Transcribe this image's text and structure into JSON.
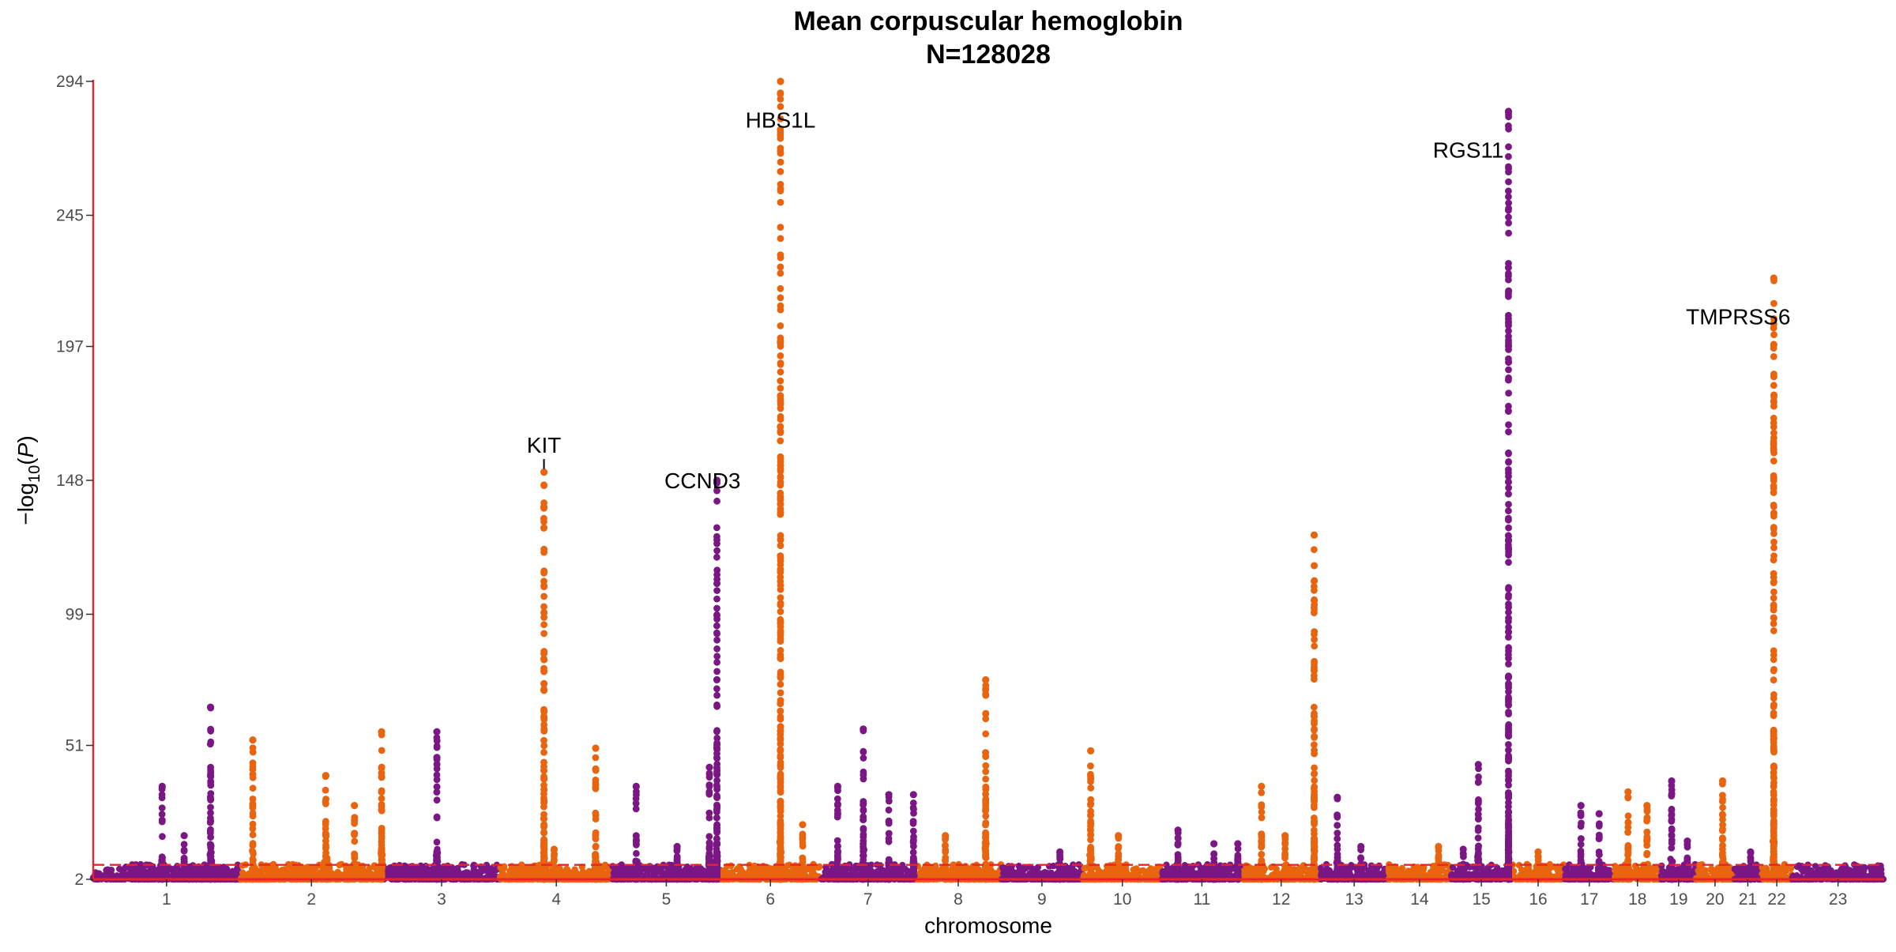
{
  "chart_data": {
    "type": "scatter",
    "subtype": "manhattan",
    "title": "Mean corpuscular hemoglobin",
    "subtitle": "N=128028",
    "xlabel": "chromosome",
    "ylabel": "-log10(P)",
    "ylim": [
      2,
      294
    ],
    "yticks": [
      2,
      51,
      99,
      148,
      197,
      245,
      294
    ],
    "significance_line": 7.3,
    "grid": false,
    "colors": {
      "odd": "#7B1685",
      "even": "#E8640E",
      "threshold": "#E8242A",
      "axis": "#E8242A"
    },
    "chromosomes": [
      {
        "label": "1",
        "start": 0,
        "end": 248
      },
      {
        "label": "2",
        "start": 248,
        "end": 490
      },
      {
        "label": "3",
        "start": 490,
        "end": 688
      },
      {
        "label": "4",
        "start": 688,
        "end": 878
      },
      {
        "label": "5",
        "start": 878,
        "end": 1060
      },
      {
        "label": "6",
        "start": 1060,
        "end": 1230
      },
      {
        "label": "7",
        "start": 1230,
        "end": 1390
      },
      {
        "label": "8",
        "start": 1390,
        "end": 1535
      },
      {
        "label": "9",
        "start": 1535,
        "end": 1673
      },
      {
        "label": "10",
        "start": 1673,
        "end": 1807
      },
      {
        "label": "11",
        "start": 1807,
        "end": 1942
      },
      {
        "label": "12",
        "start": 1942,
        "end": 2075
      },
      {
        "label": "13",
        "start": 2075,
        "end": 2189
      },
      {
        "label": "14",
        "start": 2189,
        "end": 2296
      },
      {
        "label": "15",
        "start": 2296,
        "end": 2398
      },
      {
        "label": "16",
        "start": 2398,
        "end": 2488
      },
      {
        "label": "17",
        "start": 2488,
        "end": 2571
      },
      {
        "label": "18",
        "start": 2571,
        "end": 2651
      },
      {
        "label": "19",
        "start": 2651,
        "end": 2710
      },
      {
        "label": "20",
        "start": 2710,
        "end": 2774
      },
      {
        "label": "21",
        "start": 2774,
        "end": 2821
      },
      {
        "label": "22",
        "start": 2821,
        "end": 2872
      },
      {
        "label": "23",
        "start": 2872,
        "end": 3028
      }
    ],
    "peaks": [
      {
        "chr": "1",
        "offset": 0.47,
        "max": 36,
        "width": 0.6
      },
      {
        "chr": "1",
        "offset": 0.62,
        "max": 18,
        "width": 0.4
      },
      {
        "chr": "1",
        "offset": 0.8,
        "max": 65,
        "width": 0.7
      },
      {
        "chr": "2",
        "offset": 0.09,
        "max": 53,
        "width": 0.5
      },
      {
        "chr": "2",
        "offset": 0.6,
        "max": 40,
        "width": 0.9
      },
      {
        "chr": "2",
        "offset": 0.8,
        "max": 29,
        "width": 0.7
      },
      {
        "chr": "2",
        "offset": 0.99,
        "max": 56,
        "width": 0.5
      },
      {
        "chr": "3",
        "offset": 0.46,
        "max": 56,
        "width": 0.5
      },
      {
        "chr": "4",
        "offset": 0.39,
        "max": 151,
        "width": 0.4
      },
      {
        "chr": "4",
        "offset": 0.48,
        "max": 13,
        "width": 0.6
      },
      {
        "chr": "4",
        "offset": 0.85,
        "max": 50,
        "width": 0.5
      },
      {
        "chr": "5",
        "offset": 0.22,
        "max": 36,
        "width": 0.6
      },
      {
        "chr": "5",
        "offset": 0.6,
        "max": 14,
        "width": 0.6
      },
      {
        "chr": "5",
        "offset": 0.9,
        "max": 43,
        "width": 0.5
      },
      {
        "chr": "5",
        "offset": 0.97,
        "max": 148,
        "width": 0.5
      },
      {
        "chr": "6",
        "offset": 0.6,
        "max": 294,
        "width": 0.5
      },
      {
        "chr": "6",
        "offset": 0.82,
        "max": 22,
        "width": 0.6
      },
      {
        "chr": "7",
        "offset": 0.18,
        "max": 36,
        "width": 0.6
      },
      {
        "chr": "7",
        "offset": 0.45,
        "max": 57,
        "width": 0.5
      },
      {
        "chr": "7",
        "offset": 0.72,
        "max": 33,
        "width": 0.6
      },
      {
        "chr": "7",
        "offset": 0.98,
        "max": 33,
        "width": 0.6
      },
      {
        "chr": "8",
        "offset": 0.35,
        "max": 18,
        "width": 0.6
      },
      {
        "chr": "8",
        "offset": 0.82,
        "max": 75,
        "width": 0.5
      },
      {
        "chr": "9",
        "offset": 0.72,
        "max": 12,
        "width": 0.5
      },
      {
        "chr": "10",
        "offset": 0.1,
        "max": 49,
        "width": 0.6
      },
      {
        "chr": "10",
        "offset": 0.45,
        "max": 18,
        "width": 0.5
      },
      {
        "chr": "11",
        "offset": 0.2,
        "max": 20,
        "width": 0.6
      },
      {
        "chr": "11",
        "offset": 0.65,
        "max": 15,
        "width": 0.5
      },
      {
        "chr": "11",
        "offset": 0.95,
        "max": 15,
        "width": 0.5
      },
      {
        "chr": "12",
        "offset": 0.25,
        "max": 36,
        "width": 0.6
      },
      {
        "chr": "12",
        "offset": 0.55,
        "max": 18,
        "width": 0.5
      },
      {
        "chr": "12",
        "offset": 0.92,
        "max": 128,
        "width": 0.5
      },
      {
        "chr": "13",
        "offset": 0.25,
        "max": 32,
        "width": 0.6
      },
      {
        "chr": "13",
        "offset": 0.6,
        "max": 14,
        "width": 0.5
      },
      {
        "chr": "14",
        "offset": 0.8,
        "max": 14,
        "width": 0.5
      },
      {
        "chr": "15",
        "offset": 0.2,
        "max": 13,
        "width": 0.5
      },
      {
        "chr": "15",
        "offset": 0.45,
        "max": 44,
        "width": 0.6
      },
      {
        "chr": "15",
        "offset": 0.95,
        "max": 283,
        "width": 0.4
      },
      {
        "chr": "16",
        "offset": 0.5,
        "max": 12,
        "width": 0.5
      },
      {
        "chr": "17",
        "offset": 0.33,
        "max": 29,
        "width": 0.7
      },
      {
        "chr": "17",
        "offset": 0.7,
        "max": 26,
        "width": 0.6
      },
      {
        "chr": "18",
        "offset": 0.3,
        "max": 34,
        "width": 0.6
      },
      {
        "chr": "18",
        "offset": 0.7,
        "max": 29,
        "width": 0.6
      },
      {
        "chr": "19",
        "offset": 0.3,
        "max": 38,
        "width": 0.7
      },
      {
        "chr": "19",
        "offset": 0.75,
        "max": 16,
        "width": 0.6
      },
      {
        "chr": "20",
        "offset": 0.7,
        "max": 38,
        "width": 0.6
      },
      {
        "chr": "21",
        "offset": 0.6,
        "max": 12,
        "width": 0.5
      },
      {
        "chr": "22",
        "offset": 0.4,
        "max": 222,
        "width": 0.6
      }
    ],
    "annotations": [
      {
        "label": "HBS1L",
        "chr": "6",
        "offset": 0.6,
        "y": 280,
        "align": "center",
        "dx": 0,
        "leader": false
      },
      {
        "label": "RGS11",
        "chr": "15",
        "offset": 0.95,
        "y": 269,
        "align": "end",
        "dx": -6,
        "leader": false
      },
      {
        "label": "TMPRSS6",
        "chr": "22",
        "offset": 0.4,
        "y": 208,
        "align": "middle",
        "dx": -45,
        "leader": false
      },
      {
        "label": "KIT",
        "chr": "4",
        "offset": 0.39,
        "y": 161,
        "align": "center",
        "dx": 0,
        "leader": true
      },
      {
        "label": "CCND3",
        "chr": "5",
        "offset": 0.97,
        "y": 148,
        "align": "end",
        "dx": 30,
        "leader": false
      }
    ]
  }
}
